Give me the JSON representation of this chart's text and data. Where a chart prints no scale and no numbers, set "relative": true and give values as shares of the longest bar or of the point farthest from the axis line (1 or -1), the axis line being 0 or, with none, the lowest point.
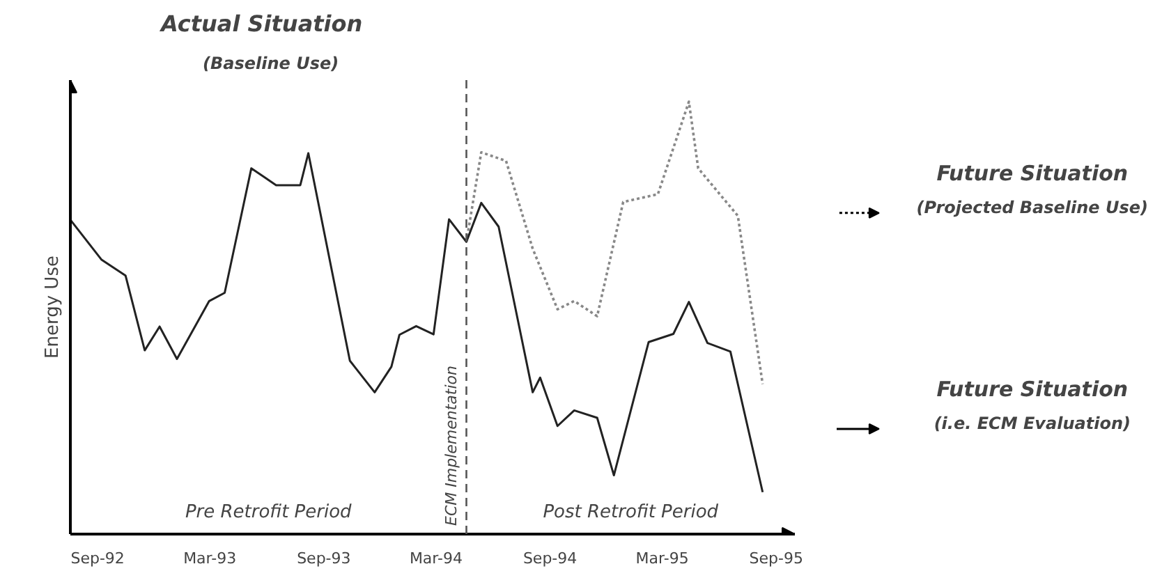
{
  "chart_data": {
    "type": "line",
    "title": "Actual Situation",
    "subtitle": "(Baseline Use)",
    "ylabel": "Energy Use",
    "relative": true,
    "tick_labels": "x",
    "grid": false,
    "marker": "none",
    "xlim": [
      "1992-07-19",
      "1995-10-01"
    ],
    "xticks": [
      {
        "value": "1992-09-01",
        "label": "Sep-92"
      },
      {
        "value": "1993-03-01",
        "label": "Mar-93"
      },
      {
        "value": "1993-09-01",
        "label": "Sep-93"
      },
      {
        "value": "1994-03-01",
        "label": "Mar-94"
      },
      {
        "value": "1994-09-01",
        "label": "Sep-94"
      },
      {
        "value": "1995-03-01",
        "label": "Mar-95"
      },
      {
        "value": "1995-09-01",
        "label": "Sep-95"
      }
    ],
    "series": [
      {
        "color": "#888888",
        "line_style": "dotted",
        "x": [
          "1994-04-19",
          "1994-05-13",
          "1994-06-22",
          "1994-08-04",
          "1994-09-13",
          "1994-10-10",
          "1994-11-16",
          "1994-12-28",
          "1995-02-22",
          "1995-04-13",
          "1995-04-28",
          "1995-07-01",
          "1995-08-10"
        ],
        "values": [
          0.676,
          0.883,
          0.863,
          0.66,
          0.52,
          0.539,
          0.504,
          0.768,
          0.786,
          1,
          0.846,
          0.736,
          0.347
        ]
      },
      {
        "color": "#222222",
        "line_style": "solid",
        "x": [
          "1992-07-19",
          "1992-09-07",
          "1992-10-16",
          "1992-11-16",
          "1992-12-10",
          "1993-01-07",
          "1993-02-28",
          "1993-03-25",
          "1993-05-07",
          "1993-06-16",
          "1993-07-25",
          "1993-08-07",
          "1993-10-13",
          "1993-11-22",
          "1993-12-19",
          "1994-01-01",
          "1994-01-28",
          "1994-02-25",
          "1994-03-22",
          "1994-04-19",
          "1994-05-13",
          "1994-06-10",
          "1994-08-04",
          "1994-08-16",
          "1994-09-13",
          "1994-10-10",
          "1994-11-16",
          "1994-12-13",
          "1995-02-07",
          "1995-03-19",
          "1995-04-13",
          "1995-05-13",
          "1995-06-19",
          "1995-08-10"
        ],
        "values": [
          0.727,
          0.635,
          0.598,
          0.425,
          0.48,
          0.405,
          0.539,
          0.558,
          0.846,
          0.807,
          0.807,
          0.881,
          0.401,
          0.328,
          0.387,
          0.461,
          0.481,
          0.462,
          0.728,
          0.676,
          0.766,
          0.711,
          0.328,
          0.362,
          0.25,
          0.286,
          0.269,
          0.136,
          0.444,
          0.463,
          0.537,
          0.442,
          0.422,
          0.097
        ]
      }
    ],
    "ref_lines": [
      {
        "axis": "x",
        "value": "1994-04-19",
        "label": "ECM Implementation",
        "color": "#555555",
        "line_style": "dashed"
      }
    ],
    "annotations": [
      "Pre Retrofit Period",
      "Post Retrofit Period",
      "Future Situation",
      "(Projected Baseline Use)",
      "Future Situation",
      "(i.e. ECM Evaluation)"
    ]
  }
}
